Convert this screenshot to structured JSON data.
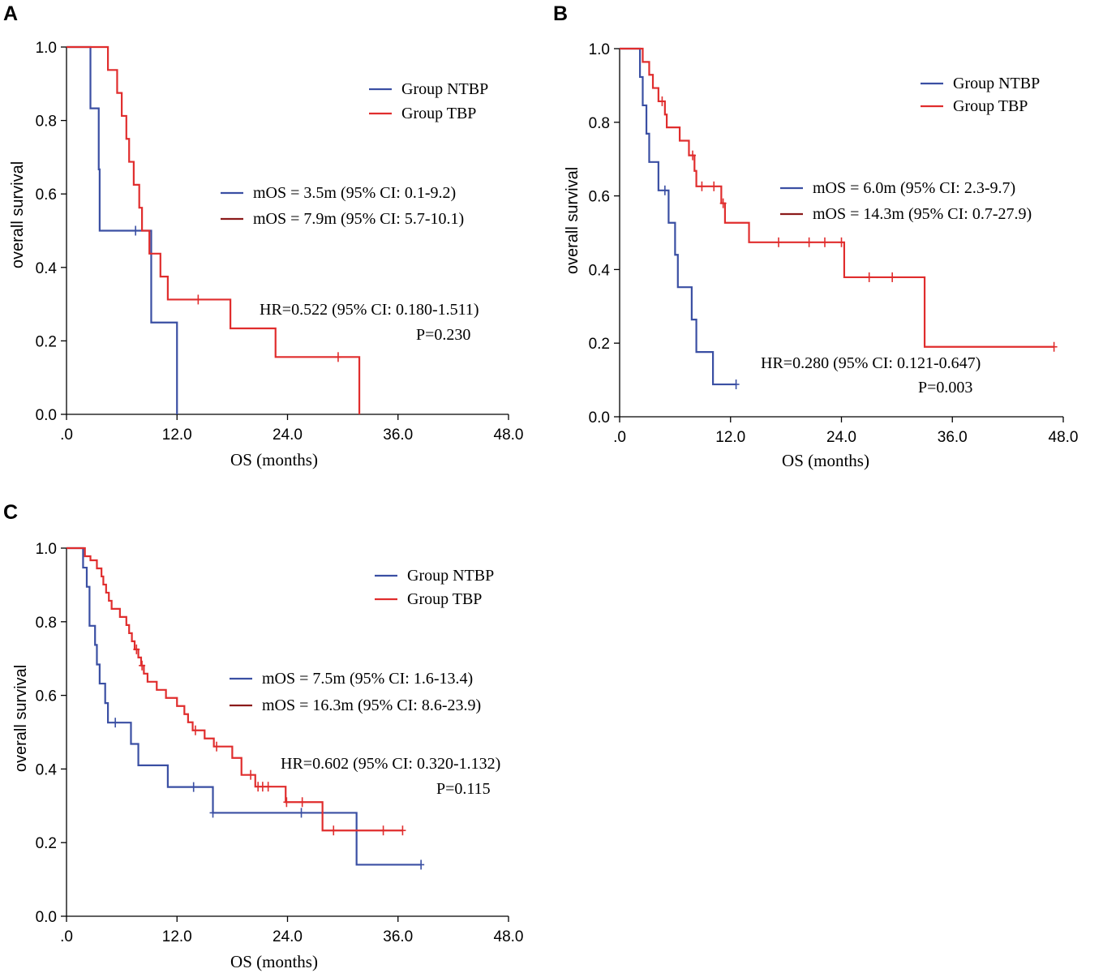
{
  "colors": {
    "ntbp": "#3a4fa3",
    "tbp": "#e02d2d",
    "tbp_legend_mos": "#8b1a1a"
  },
  "chart_data": [
    {
      "panel": "A",
      "type": "line",
      "subtype": "kaplan-meier",
      "xlabel": "OS (months)",
      "ylabel": "overall survival",
      "xlim": [
        0,
        48
      ],
      "ylim": [
        0,
        1
      ],
      "xticks": [
        ".0",
        "12.0",
        "24.0",
        "36.0",
        "48.0"
      ],
      "yticks": [
        "0.0",
        "0.2",
        "0.4",
        "0.6",
        "0.8",
        "1.0"
      ],
      "legend": [
        "Group NTBP",
        "Group TBP"
      ],
      "mos": [
        "mOS = 3.5m (95% CI: 0.1-9.2)",
        "mOS = 7.9m (95% CI: 5.7-10.1)"
      ],
      "hr": "HR=0.522 (95% CI: 0.180-1.511)",
      "p": "P=0.230",
      "series": [
        {
          "name": "Group NTBP",
          "steps": [
            [
              0,
              1
            ],
            [
              2.6,
              0.833
            ],
            [
              3.5,
              0.667
            ],
            [
              3.6,
              0.5
            ],
            [
              9.2,
              0.25
            ],
            [
              12.0,
              0
            ]
          ],
          "end": 12.0,
          "censors": [
            [
              7.5,
              0.5
            ]
          ]
        },
        {
          "name": "Group TBP",
          "steps": [
            [
              0,
              1
            ],
            [
              4.5,
              0.9375
            ],
            [
              5.5,
              0.875
            ],
            [
              6.0,
              0.8125
            ],
            [
              6.5,
              0.75
            ],
            [
              6.8,
              0.6875
            ],
            [
              7.3,
              0.625
            ],
            [
              7.9,
              0.5625
            ],
            [
              8.2,
              0.5
            ],
            [
              9.0,
              0.4375
            ],
            [
              10.2,
              0.375
            ],
            [
              11.0,
              0.3125
            ],
            [
              17.8,
              0.234
            ],
            [
              22.7,
              0.156
            ],
            [
              31.8,
              0
            ]
          ],
          "end": 31.8,
          "censors": [
            [
              14.3,
              0.3125
            ],
            [
              29.5,
              0.156
            ]
          ]
        }
      ]
    },
    {
      "panel": "B",
      "type": "line",
      "subtype": "kaplan-meier",
      "xlabel": "OS (months)",
      "ylabel": "overall survival",
      "xlim": [
        0,
        48
      ],
      "ylim": [
        0,
        1
      ],
      "xticks": [
        ".0",
        "12.0",
        "24.0",
        "36.0",
        "48.0"
      ],
      "yticks": [
        "0.0",
        "0.2",
        "0.4",
        "0.6",
        "0.8",
        "1.0"
      ],
      "legend": [
        "Group NTBP",
        "Group TBP"
      ],
      "mos": [
        "mOS = 6.0m (95% CI: 2.3-9.7)",
        "mOS = 14.3m (95% CI: 0.7-27.9)"
      ],
      "hr": "HR=0.280 (95% CI: 0.121-0.647)",
      "p": "P=0.003",
      "series": [
        {
          "name": "Group NTBP",
          "steps": [
            [
              0,
              1
            ],
            [
              2.2,
              0.923
            ],
            [
              2.5,
              0.846
            ],
            [
              2.9,
              0.769
            ],
            [
              3.2,
              0.692
            ],
            [
              4.2,
              0.615
            ],
            [
              5.3,
              0.527
            ],
            [
              6.0,
              0.44
            ],
            [
              6.3,
              0.352
            ],
            [
              7.8,
              0.264
            ],
            [
              8.3,
              0.176
            ],
            [
              10.1,
              0.088
            ]
          ],
          "end": 12.6,
          "censors": [
            [
              4.9,
              0.615
            ],
            [
              12.6,
              0.088
            ]
          ]
        },
        {
          "name": "Group TBP",
          "steps": [
            [
              0,
              1
            ],
            [
              2.5,
              0.964
            ],
            [
              3.2,
              0.929
            ],
            [
              3.6,
              0.893
            ],
            [
              4.2,
              0.857
            ],
            [
              4.9,
              0.821
            ],
            [
              5.1,
              0.786
            ],
            [
              6.5,
              0.75
            ],
            [
              7.5,
              0.71
            ],
            [
              8.1,
              0.668
            ],
            [
              8.3,
              0.626
            ],
            [
              11.0,
              0.58
            ],
            [
              11.4,
              0.527
            ],
            [
              14.0,
              0.474
            ],
            [
              24.3,
              0.379
            ],
            [
              33.0,
              0.19
            ]
          ],
          "end": 47.0,
          "censors": [
            [
              4.6,
              0.857
            ],
            [
              7.9,
              0.71
            ],
            [
              8.9,
              0.626
            ],
            [
              10.2,
              0.626
            ],
            [
              11.2,
              0.58
            ],
            [
              17.2,
              0.474
            ],
            [
              20.5,
              0.474
            ],
            [
              22.2,
              0.474
            ],
            [
              24.0,
              0.474
            ],
            [
              27.0,
              0.379
            ],
            [
              29.5,
              0.379
            ],
            [
              47.0,
              0.19
            ]
          ]
        }
      ]
    },
    {
      "panel": "C",
      "type": "line",
      "subtype": "kaplan-meier",
      "xlabel": "OS (months)",
      "ylabel": "overall survival",
      "xlim": [
        0,
        48
      ],
      "ylim": [
        0,
        1
      ],
      "xticks": [
        ".0",
        "12.0",
        "24.0",
        "36.0",
        "48.0"
      ],
      "yticks": [
        "0.0",
        "0.2",
        "0.4",
        "0.6",
        "0.8",
        "1.0"
      ],
      "legend": [
        "Group NTBP",
        "Group TBP"
      ],
      "mos": [
        "mOS = 7.5m (95% CI: 1.6-13.4)",
        "mOS = 16.3m (95% CI: 8.6-23.9)"
      ],
      "hr": "HR=0.602 (95% CI: 0.320-1.132)",
      "p": "P=0.115",
      "series": [
        {
          "name": "Group NTBP",
          "steps": [
            [
              0,
              1
            ],
            [
              1.8,
              0.947
            ],
            [
              2.2,
              0.895
            ],
            [
              2.5,
              0.789
            ],
            [
              3.1,
              0.737
            ],
            [
              3.3,
              0.684
            ],
            [
              3.6,
              0.632
            ],
            [
              4.2,
              0.579
            ],
            [
              4.5,
              0.526
            ],
            [
              7.0,
              0.468
            ],
            [
              7.8,
              0.41
            ],
            [
              11.0,
              0.351
            ],
            [
              15.9,
              0.281
            ],
            [
              31.5,
              0.14
            ]
          ],
          "end": 38.5,
          "censors": [
            [
              5.3,
              0.526
            ],
            [
              13.8,
              0.351
            ],
            [
              15.9,
              0.281
            ],
            [
              25.5,
              0.281
            ],
            [
              38.5,
              0.14
            ]
          ]
        },
        {
          "name": "Group TBP",
          "steps": [
            [
              0,
              1
            ],
            [
              2.0,
              0.978
            ],
            [
              2.6,
              0.967
            ],
            [
              3.3,
              0.945
            ],
            [
              3.8,
              0.923
            ],
            [
              4.0,
              0.901
            ],
            [
              4.3,
              0.879
            ],
            [
              4.6,
              0.857
            ],
            [
              4.9,
              0.835
            ],
            [
              5.8,
              0.813
            ],
            [
              6.5,
              0.791
            ],
            [
              6.8,
              0.769
            ],
            [
              7.1,
              0.747
            ],
            [
              7.4,
              0.725
            ],
            [
              7.8,
              0.703
            ],
            [
              8.1,
              0.681
            ],
            [
              8.4,
              0.659
            ],
            [
              8.8,
              0.637
            ],
            [
              9.8,
              0.615
            ],
            [
              10.8,
              0.593
            ],
            [
              12.0,
              0.571
            ],
            [
              12.8,
              0.549
            ],
            [
              13.2,
              0.527
            ],
            [
              13.7,
              0.505
            ],
            [
              15.0,
              0.483
            ],
            [
              16.0,
              0.461
            ],
            [
              18.0,
              0.43
            ],
            [
              19.0,
              0.384
            ],
            [
              20.5,
              0.352
            ],
            [
              23.8,
              0.31
            ],
            [
              27.8,
              0.233
            ]
          ],
          "end": 36.5,
          "censors": [
            [
              7.6,
              0.725
            ],
            [
              8.2,
              0.681
            ],
            [
              14.0,
              0.505
            ],
            [
              16.3,
              0.461
            ],
            [
              20.0,
              0.384
            ],
            [
              20.8,
              0.352
            ],
            [
              21.3,
              0.352
            ],
            [
              21.9,
              0.352
            ],
            [
              23.9,
              0.31
            ],
            [
              25.6,
              0.31
            ],
            [
              29.0,
              0.233
            ],
            [
              34.4,
              0.233
            ],
            [
              36.5,
              0.233
            ]
          ]
        }
      ]
    }
  ]
}
